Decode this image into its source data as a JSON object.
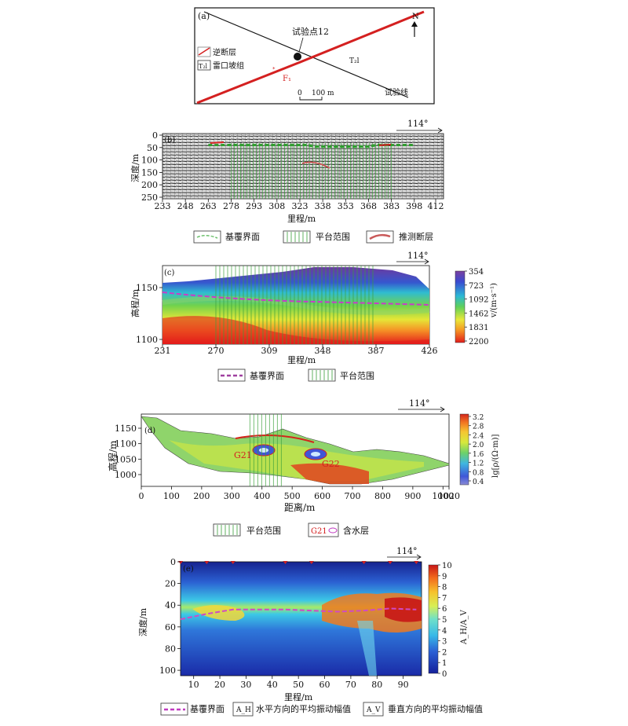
{
  "panel_a": {
    "label": "(a)",
    "point_label": "试验点12",
    "legend_fault": "逆断层",
    "legend_unit_symbol": "T₂l",
    "legend_unit": "雷口坡组",
    "unit_mark": "T₂l",
    "fault_label": "F₁",
    "north": "N",
    "scale_zero": "0",
    "scale_value": "100 m",
    "line_label": "试验线",
    "colors": {
      "fault": "#d42020"
    }
  },
  "chart_data": [
    {
      "id": "b",
      "type": "heatmap",
      "label": "(b)",
      "azimuth": "114°",
      "ylabel": "深度/m",
      "xlabel": "里程/m",
      "x_ticks": [
        "233",
        "248",
        "263",
        "278",
        "293",
        "308",
        "323",
        "338",
        "353",
        "368",
        "383",
        "398",
        "412"
      ],
      "y_ticks": [
        "0",
        "50",
        "100",
        "150",
        "200",
        "250"
      ],
      "ylim": [
        0,
        250
      ],
      "platform_range": [
        278,
        383
      ],
      "interface_depth": 40,
      "legend": [
        "基覆界面",
        "平台范围",
        "推测断层"
      ]
    },
    {
      "id": "c",
      "type": "heatmap",
      "label": "(c)",
      "azimuth": "114°",
      "ylabel": "高程/m",
      "xlabel": "里程/m",
      "x_ticks": [
        "231",
        "270",
        "309",
        "348",
        "387",
        "426"
      ],
      "y_ticks": [
        "1100",
        "1150"
      ],
      "colorbar_label": "v/(m·s⁻¹)",
      "colorbar_ticks": [
        "354",
        "723",
        "1092",
        "1462",
        "1831",
        "2200"
      ],
      "platform_range": [
        270,
        387
      ],
      "legend": [
        "基覆界面",
        "平台范围"
      ]
    },
    {
      "id": "d",
      "type": "heatmap",
      "label": "(d)",
      "azimuth": "114°",
      "ylabel": "高程/m",
      "xlabel": "距离/m",
      "x_ticks": [
        "0",
        "100",
        "200",
        "300",
        "400",
        "500",
        "600",
        "700",
        "800",
        "900",
        "1000",
        "1020"
      ],
      "y_ticks": [
        "1000",
        "1050",
        "1100",
        "1150"
      ],
      "colorbar_label": "lg[ρ/(Ω·m)]",
      "colorbar_ticks": [
        "0.4",
        "0.8",
        "1.2",
        "1.6",
        "2.0",
        "2.4",
        "2.8",
        "3.2"
      ],
      "platform_range": [
        360,
        470
      ],
      "aquifers": [
        "G21",
        "G22"
      ],
      "legend": [
        "平台范围",
        "含水层"
      ],
      "legend_aquifer_symbol": "G21"
    },
    {
      "id": "e",
      "type": "heatmap",
      "label": "(e)",
      "azimuth": "114°",
      "ylabel": "深度/m",
      "xlabel": "里程/m",
      "x_ticks": [
        "10",
        "20",
        "30",
        "40",
        "50",
        "60",
        "70",
        "80",
        "90"
      ],
      "y_ticks": [
        "0",
        "20",
        "40",
        "60",
        "80",
        "100"
      ],
      "xlim": [
        5,
        97
      ],
      "ylim": [
        0,
        105
      ],
      "colorbar_label": "A_H/A_V",
      "colorbar_ticks": [
        "0",
        "1",
        "2",
        "3",
        "4",
        "5",
        "6",
        "7",
        "8",
        "9",
        "10"
      ],
      "interface": {
        "x": [
          5,
          15,
          25,
          35,
          45,
          55,
          65,
          75,
          85,
          95
        ],
        "y": [
          53,
          48,
          44,
          44,
          44,
          45,
          46,
          45,
          43,
          44
        ]
      },
      "legend": [
        "基覆界面",
        "水平方向的平均振动幅值",
        "垂直方向的平均振动幅值"
      ],
      "legend_symbols": [
        "A_H",
        "A_V"
      ]
    }
  ]
}
